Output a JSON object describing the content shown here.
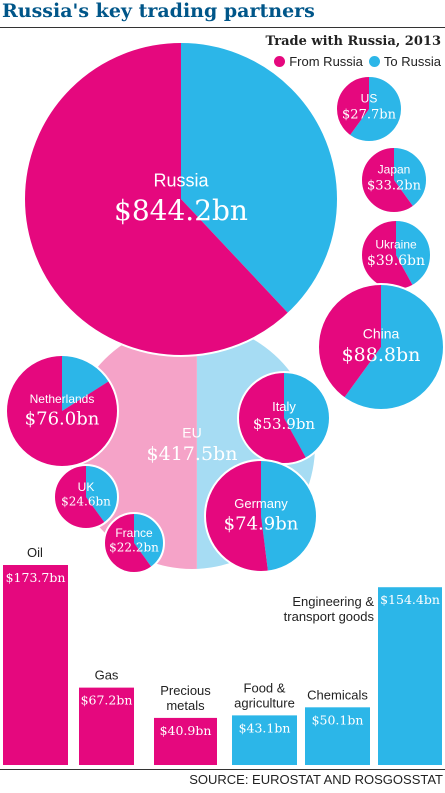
{
  "header": {
    "title": "Russia's key trading partners",
    "subtitle": "Trade with Russia, 2013",
    "legend_from": "From Russia",
    "legend_to": "To Russia",
    "source": "SOURCE: EUROSTAT AND ROSGOSSTAT"
  },
  "colors": {
    "from_russia": "#e5087e",
    "to_russia": "#2cb6e8",
    "eu_from": "#f5a3c8",
    "eu_to": "#a6dcf3"
  },
  "chart_data": [
    {
      "type": "pie",
      "title": "Trade with Russia, 2013",
      "series": [
        "From Russia",
        "To Russia"
      ],
      "partners": [
        {
          "name": "Russia",
          "total_label": "$844.2bn",
          "total": 844.2,
          "from_share": 0.62
        },
        {
          "name": "US",
          "total_label": "$27.7bn",
          "total": 27.7,
          "from_share": 0.4
        },
        {
          "name": "Japan",
          "total_label": "$33.2bn",
          "total": 33.2,
          "from_share": 0.6
        },
        {
          "name": "Ukraine",
          "total_label": "$39.6bn",
          "total": 39.6,
          "from_share": 0.58
        },
        {
          "name": "China",
          "total_label": "$88.8bn",
          "total": 88.8,
          "from_share": 0.4
        },
        {
          "name": "EU",
          "total_label": "$417.5bn",
          "total": 417.5,
          "from_share": 0.52
        },
        {
          "name": "Netherlands",
          "total_label": "$76.0bn",
          "total": 76.0,
          "from_share": 0.84
        },
        {
          "name": "Italy",
          "total_label": "$53.9bn",
          "total": 53.9,
          "from_share": 0.58
        },
        {
          "name": "UK",
          "total_label": "$24.6bn",
          "total": 24.6,
          "from_share": 0.6
        },
        {
          "name": "Germany",
          "total_label": "$74.9bn",
          "total": 74.9,
          "from_share": 0.52
        },
        {
          "name": "France",
          "total_label": "$22.2bn",
          "total": 22.2,
          "from_share": 0.6
        }
      ]
    },
    {
      "type": "bar",
      "categories": [
        "Oil",
        "Gas",
        "Precious metals",
        "Food & agriculture",
        "Chemicals",
        "Engineering & transport goods"
      ],
      "values": [
        173.7,
        67.2,
        40.9,
        43.1,
        50.1,
        154.4
      ],
      "value_labels": [
        "$173.7bn",
        "$67.2bn",
        "$40.9bn",
        "$43.1bn",
        "$50.1bn",
        "$154.4bn"
      ],
      "direction": [
        "From Russia",
        "From Russia",
        "From Russia",
        "To Russia",
        "To Russia",
        "To Russia"
      ]
    }
  ]
}
